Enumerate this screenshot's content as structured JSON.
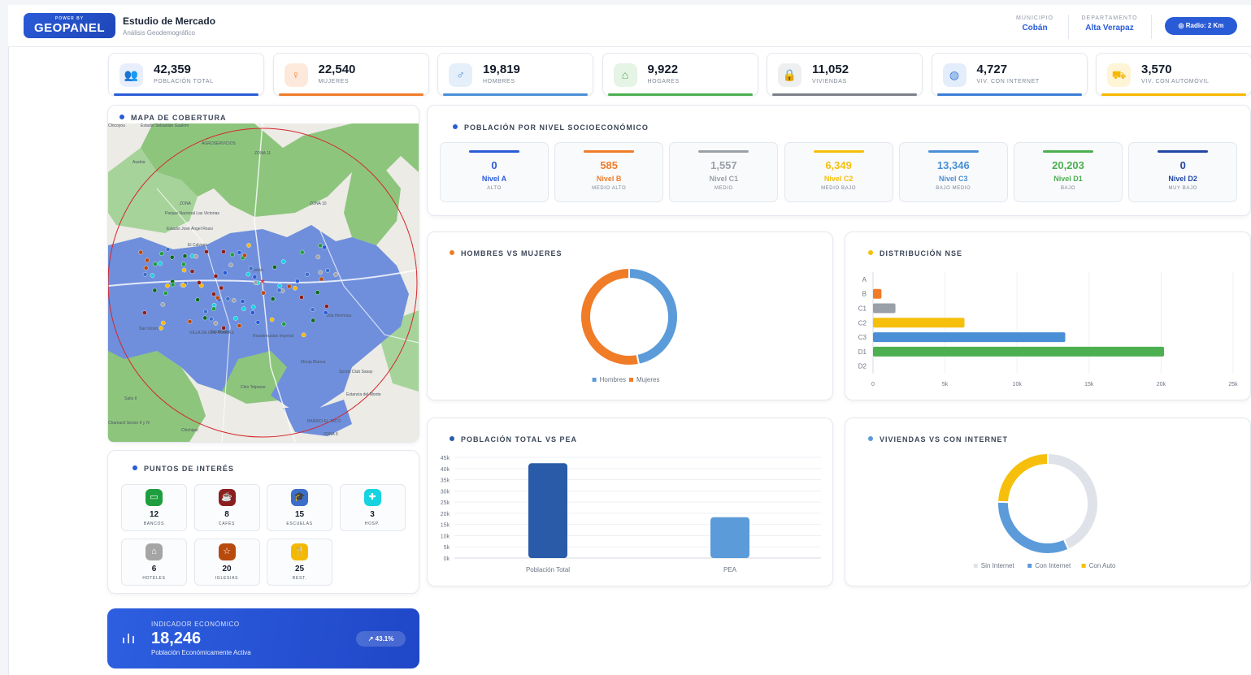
{
  "header": {
    "logo_small": "POWER BY",
    "logo_big": "GEOPANEL",
    "title": "Estudio de Mercado",
    "subtitle": "Análisis Geodemográfico",
    "municipio_label": "MUNICIPIO",
    "municipio_value": "Cobán",
    "departamento_label": "DEPARTAMENTO",
    "departamento_value": "Alta Verapaz",
    "radius_button": "Radio: 2 Km"
  },
  "stats": [
    {
      "value": "42,359",
      "label": "POBLACIÓN TOTAL",
      "icon": "users-icon",
      "color": "#2a5bd7"
    },
    {
      "value": "22,540",
      "label": "MUJERES",
      "icon": "woman-icon",
      "color": "#f07c28"
    },
    {
      "value": "19,819",
      "label": "HOMBRES",
      "icon": "man-icon",
      "color": "#4a8fd6"
    },
    {
      "value": "9,922",
      "label": "HOGARES",
      "icon": "home-icon",
      "color": "#4caf50"
    },
    {
      "value": "11,052",
      "label": "VIVIENDAS",
      "icon": "lock-icon",
      "color": "#7b8088"
    },
    {
      "value": "4,727",
      "label": "VIV. CON INTERNET",
      "icon": "globe-icon",
      "color": "#3b7dd8"
    },
    {
      "value": "3,570",
      "label": "VIV. CON AUTOMÓVIL",
      "icon": "car-icon",
      "color": "#f5b800"
    }
  ],
  "map": {
    "title": "MAPA DE COBERTURA",
    "labels": [
      "Chicoyou",
      "Estadio Sebastián Gualom",
      "AGROSERVICIOS",
      "Austria",
      "ZONA 11",
      "ZONA",
      "Parque Nacional Las Victorias",
      "Estadio José Ángel Rossi",
      "El Calvario",
      "ZONA 10",
      "Cobán",
      "San Vicente",
      "San Rafael",
      "VILLA DE LOS ROBLES",
      "Villa Hermosa",
      "Residenciales Imperial",
      "Sports Club Sasay",
      "Chio Telpraxe",
      "Monja Blanca",
      "BARRIO EL TACO",
      "ZONA 6",
      "Satis II",
      "Chamach Sector II y IV",
      "Chichipol",
      "Estancia del Monte"
    ]
  },
  "nse_panel": {
    "title": "POBLACIÓN POR NIVEL SOCIOECONÓMICO",
    "levels": [
      {
        "value": "0",
        "name": "Nivel A",
        "sub": "ALTO",
        "color": "#2a5bd7"
      },
      {
        "value": "585",
        "name": "Nivel B",
        "sub": "MEDIO ALTO",
        "color": "#f07c28"
      },
      {
        "value": "1,557",
        "name": "Nivel C1",
        "sub": "MEDIO",
        "color": "#9aa0a8"
      },
      {
        "value": "6,349",
        "name": "Nivel C2",
        "sub": "MEDIO BAJO",
        "color": "#f5bf0c"
      },
      {
        "value": "13,346",
        "name": "Nivel C3",
        "sub": "BAJO MEDIO",
        "color": "#4a8fd6"
      },
      {
        "value": "20,203",
        "name": "Nivel D1",
        "sub": "BAJO",
        "color": "#4caf50"
      },
      {
        "value": "0",
        "name": "Nivel D2",
        "sub": "MUY BAJO",
        "color": "#1f47a3"
      }
    ]
  },
  "gender_chart_title": "HOMBRES VS MUJERES",
  "nse_chart_title": "DISTRIBUCIÓN NSE",
  "pea_chart_title": "POBLACIÓN TOTAL VS PEA",
  "internet_chart_title": "VIVIENDAS VS CON INTERNET",
  "chart_data": [
    {
      "type": "pie",
      "donut": true,
      "categories": [
        "Hombres",
        "Mujeres"
      ],
      "values": [
        19819,
        22540
      ],
      "colors": [
        "#5b9bd9",
        "#f07c28"
      ],
      "legend": "bottom"
    },
    {
      "type": "bar",
      "orientation": "horizontal",
      "categories": [
        "A",
        "B",
        "C1",
        "C2",
        "C3",
        "D1",
        "D2"
      ],
      "values": [
        0,
        585,
        1557,
        6349,
        13346,
        20203,
        0
      ],
      "colors": [
        "#2a5bd7",
        "#f07c28",
        "#9aa0a8",
        "#f5bf0c",
        "#4a8fd6",
        "#4caf50",
        "#1f47a3"
      ],
      "xlim": [
        0,
        25000
      ],
      "xticks": [
        "0",
        "5k",
        "10k",
        "15k",
        "20k",
        "25k"
      ],
      "grid": true
    },
    {
      "type": "bar",
      "categories": [
        "Población Total",
        "PEA"
      ],
      "values": [
        42359,
        18246
      ],
      "colors": [
        "#2a5ba8",
        "#5b9bd9"
      ],
      "ylim": [
        0,
        45000
      ],
      "yticks": [
        "0k",
        "5k",
        "10k",
        "15k",
        "20k",
        "25k",
        "30k",
        "35k",
        "40k",
        "45k"
      ],
      "grid": true
    },
    {
      "type": "pie",
      "donut": true,
      "categories": [
        "Sin Internet",
        "Con Internet",
        "Con Auto"
      ],
      "values": [
        6325,
        4727,
        3570
      ],
      "colors": [
        "#dfe3e9",
        "#5b9bd9",
        "#f5bf0c"
      ],
      "legend": "bottom"
    }
  ],
  "poi": {
    "title": "PUNTOS DE INTERÉS",
    "items": [
      {
        "count": "12",
        "label": "BANCOS",
        "icon": "bank-icon",
        "color": "#1e9e3e"
      },
      {
        "count": "8",
        "label": "CAFÉS",
        "icon": "coffee-icon",
        "color": "#8b1e1e"
      },
      {
        "count": "15",
        "label": "ESCUELAS",
        "icon": "school-icon",
        "color": "#3b6fc9"
      },
      {
        "count": "3",
        "label": "HOSP.",
        "icon": "hospital-icon",
        "color": "#17d3e0"
      },
      {
        "count": "6",
        "label": "HOTELES",
        "icon": "hotel-icon",
        "color": "#a5a5a5"
      },
      {
        "count": "20",
        "label": "IGLESIAS",
        "icon": "church-icon",
        "color": "#b84a0e"
      },
      {
        "count": "25",
        "label": "REST.",
        "icon": "restaurant-icon",
        "color": "#f5b800"
      }
    ]
  },
  "econ": {
    "label": "INDICADOR ECONÓMICO",
    "value": "18,246",
    "sub": "Población Económicamente Activa",
    "badge": "43.1%"
  }
}
